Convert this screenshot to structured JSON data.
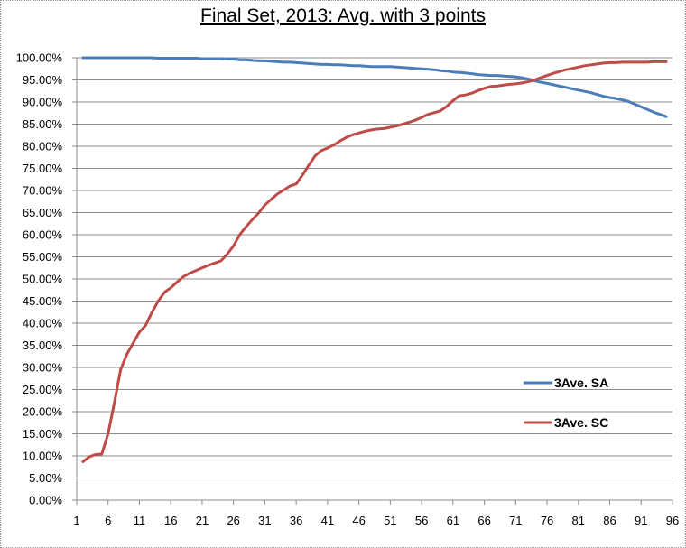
{
  "chart_data": {
    "type": "line",
    "title": "Final Set, 2013: Avg. with 3 points",
    "xlabel": "",
    "ylabel": "",
    "xlim": [
      1,
      96
    ],
    "ylim": [
      0,
      100
    ],
    "x_ticks": [
      "1",
      "6",
      "11",
      "16",
      "21",
      "26",
      "31",
      "36",
      "41",
      "46",
      "51",
      "56",
      "61",
      "66",
      "71",
      "76",
      "81",
      "86",
      "91",
      "96"
    ],
    "y_ticks": [
      "0.00%",
      "5.00%",
      "10.00%",
      "15.00%",
      "20.00%",
      "25.00%",
      "30.00%",
      "35.00%",
      "40.00%",
      "45.00%",
      "50.00%",
      "55.00%",
      "60.00%",
      "65.00%",
      "70.00%",
      "75.00%",
      "80.00%",
      "85.00%",
      "90.00%",
      "95.00%",
      "100.00%"
    ],
    "grid": "horizontal",
    "legend_position": "right",
    "x": [
      2,
      3,
      4,
      5,
      6,
      7,
      8,
      9,
      10,
      11,
      12,
      13,
      14,
      15,
      16,
      17,
      18,
      19,
      20,
      21,
      22,
      23,
      24,
      25,
      26,
      27,
      28,
      29,
      30,
      31,
      32,
      33,
      34,
      35,
      36,
      37,
      38,
      39,
      40,
      41,
      42,
      43,
      44,
      45,
      46,
      47,
      48,
      49,
      50,
      51,
      52,
      53,
      54,
      55,
      56,
      57,
      58,
      59,
      60,
      61,
      62,
      63,
      64,
      65,
      66,
      67,
      68,
      69,
      70,
      71,
      72,
      73,
      74,
      75,
      76,
      77,
      78,
      79,
      80,
      81,
      82,
      83,
      84,
      85,
      86,
      87,
      88,
      89,
      90,
      91,
      92,
      93,
      94,
      95
    ],
    "series": [
      {
        "name": "3Ave. SA",
        "color": "#4a7ebb",
        "values": [
          100,
          100,
          100,
          100,
          100,
          100,
          100,
          100,
          100,
          100,
          100,
          100,
          99.9,
          99.9,
          99.9,
          99.9,
          99.9,
          99.9,
          99.9,
          99.8,
          99.8,
          99.8,
          99.8,
          99.7,
          99.7,
          99.5,
          99.5,
          99.4,
          99.3,
          99.3,
          99.2,
          99.1,
          99.0,
          99.0,
          98.9,
          98.8,
          98.7,
          98.6,
          98.5,
          98.5,
          98.4,
          98.4,
          98.3,
          98.2,
          98.2,
          98.1,
          98.0,
          98.0,
          98.0,
          98.0,
          97.9,
          97.8,
          97.7,
          97.6,
          97.5,
          97.4,
          97.3,
          97.1,
          97.0,
          96.8,
          96.7,
          96.6,
          96.4,
          96.2,
          96.1,
          96.0,
          96.0,
          95.9,
          95.8,
          95.7,
          95.5,
          95.2,
          94.8,
          94.5,
          94.2,
          93.9,
          93.6,
          93.3,
          93.0,
          92.7,
          92.4,
          92.1,
          91.7,
          91.3,
          91.0,
          90.8,
          90.5,
          90.1,
          89.5,
          88.9,
          88.3,
          87.7,
          87.2,
          86.7
        ]
      },
      {
        "name": "3Ave. SC",
        "color": "#be4b48",
        "values": [
          8.7,
          9.8,
          10.3,
          10.4,
          15.0,
          22.0,
          29.5,
          33.0,
          35.5,
          38.0,
          39.5,
          42.5,
          45.0,
          47.0,
          48.0,
          49.3,
          50.5,
          51.3,
          51.9,
          52.5,
          53.1,
          53.6,
          54.1,
          55.6,
          57.5,
          60.0,
          61.8,
          63.4,
          64.9,
          66.7,
          68.0,
          69.2,
          70.1,
          71.0,
          71.5,
          73.5,
          75.7,
          77.8,
          79.0,
          79.6,
          80.3,
          81.2,
          82.0,
          82.6,
          83.0,
          83.4,
          83.7,
          83.9,
          84.0,
          84.3,
          84.6,
          85.0,
          85.4,
          85.9,
          86.5,
          87.2,
          87.6,
          88.0,
          89.0,
          90.3,
          91.4,
          91.6,
          92.0,
          92.6,
          93.1,
          93.5,
          93.6,
          93.8,
          94.0,
          94.1,
          94.3,
          94.6,
          95.0,
          95.5,
          96.0,
          96.5,
          96.9,
          97.3,
          97.6,
          97.9,
          98.2,
          98.4,
          98.6,
          98.8,
          98.9,
          98.9,
          99.0,
          99.0,
          99.0,
          99.0,
          99.0,
          99.1,
          99.1,
          99.1
        ]
      }
    ]
  }
}
